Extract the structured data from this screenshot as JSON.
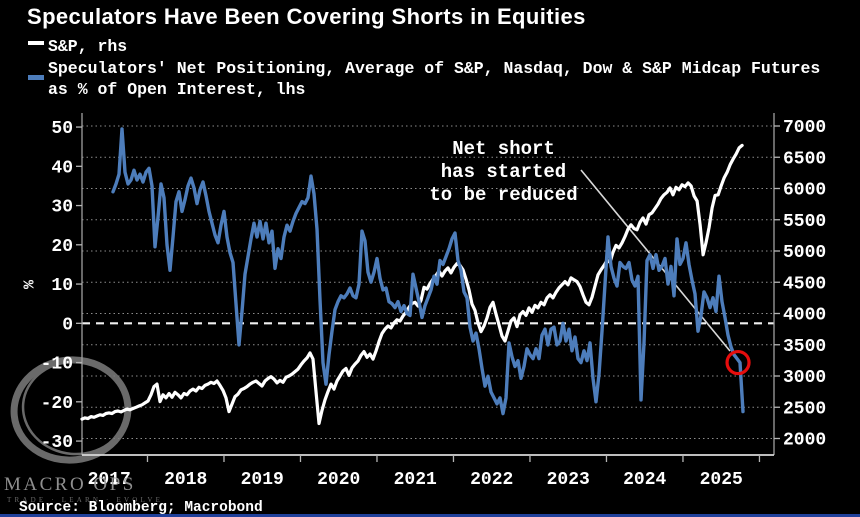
{
  "title": "Speculators Have Been Covering Shorts in Equities",
  "legend": {
    "items": [
      {
        "label": "S&P, rhs",
        "color": "#ffffff"
      },
      {
        "label": "Speculators' Net Positioning, Average of S&P, Nasdaq, Dow & S&P Midcap Futures",
        "label_line2": "as % of Open Interest, lhs",
        "color": "#4d7dbb"
      }
    ]
  },
  "annotation": {
    "lines": [
      "Net short",
      "has started",
      "to be reduced"
    ]
  },
  "watermark": {
    "brand": "MACRO OPS",
    "tagline": "TRADE · LEARN · EVOLVE"
  },
  "source": "Source: Bloomberg; Macrobond",
  "colors": {
    "background": "#000000",
    "sp_line": "#ffffff",
    "spec_line": "#4d7dbb",
    "highlight_circle": "#e60d0d",
    "gridline": "#8c8c8c",
    "bottom_bar": "#20409a"
  },
  "chart_data": {
    "type": "line",
    "title": "Speculators Have Been Covering Shorts in Equities",
    "ylabel_left": "%",
    "grid": "dotted horizontal at right-axis ticks",
    "legend_position": "top-left",
    "t_range": [
      2017.144,
      2026.19
    ],
    "x_axis": {
      "label_years": [
        "2017",
        "2018",
        "2019",
        "2020",
        "2021",
        "2022",
        "2023",
        "2024",
        "2025"
      ],
      "tick_years": [
        2018,
        2019,
        2020,
        2021,
        2022,
        2023,
        2024,
        2025,
        2026
      ]
    },
    "left_axis": {
      "label": "%",
      "ticks": [
        50,
        40,
        30,
        20,
        10,
        0,
        -10,
        -20,
        -30
      ],
      "range": [
        -33.55,
        53.07
      ],
      "zero_line": 0
    },
    "right_axis": {
      "ticks": [
        7000,
        6500,
        6000,
        5500,
        5000,
        4500,
        4000,
        3500,
        3000,
        2500,
        2000
      ],
      "range": [
        1736,
        7176
      ]
    },
    "series": [
      {
        "name": "S&P, rhs",
        "axis": "right",
        "color": "#ffffff",
        "t_start": 2017.144,
        "t_step": 0.03922,
        "values": [
          2310,
          2330,
          2320,
          2350,
          2340,
          2360,
          2380,
          2370,
          2400,
          2410,
          2400,
          2430,
          2440,
          2425,
          2450,
          2470,
          2460,
          2480,
          2500,
          2520,
          2540,
          2570,
          2600,
          2700,
          2830,
          2870,
          2590,
          2700,
          2650,
          2720,
          2660,
          2740,
          2700,
          2650,
          2720,
          2700,
          2760,
          2790,
          2760,
          2820,
          2800,
          2850,
          2870,
          2900,
          2880,
          2920,
          2850,
          2770,
          2650,
          2430,
          2550,
          2670,
          2710,
          2780,
          2800,
          2830,
          2870,
          2900,
          2920,
          2880,
          2840,
          2920,
          2960,
          2990,
          2950,
          2890,
          2930,
          2900,
          2980,
          3000,
          3030,
          3070,
          3110,
          3180,
          3240,
          3290,
          3370,
          3270,
          2750,
          2240,
          2450,
          2620,
          2750,
          2870,
          2790,
          2920,
          3000,
          3080,
          3120,
          3010,
          3130,
          3190,
          3240,
          3330,
          3390,
          3300,
          3350,
          3270,
          3400,
          3550,
          3680,
          3750,
          3800,
          3770,
          3850,
          3900,
          3880,
          3960,
          4020,
          4100,
          4160,
          4180,
          4120,
          4210,
          4420,
          4390,
          4480,
          4550,
          4610,
          4680,
          4600,
          4680,
          4730,
          4650,
          4740,
          4800,
          4770,
          4700,
          4550,
          4380,
          4150,
          4050,
          3850,
          3710,
          3800,
          3930,
          4100,
          4180,
          3990,
          3820,
          3640,
          3560,
          3720,
          3880,
          3930,
          3790,
          3980,
          4030,
          3970,
          4090,
          4020,
          4130,
          4090,
          4180,
          4140,
          4250,
          4300,
          4250,
          4340,
          4410,
          4460,
          4510,
          4460,
          4570,
          4540,
          4510,
          4430,
          4300,
          4180,
          4140,
          4260,
          4440,
          4620,
          4700,
          4770,
          4850,
          4820,
          4980,
          5090,
          5050,
          5130,
          5230,
          5350,
          5420,
          5360,
          5340,
          5460,
          5530,
          5430,
          5580,
          5610,
          5680,
          5750,
          5840,
          5900,
          5940,
          6010,
          5900,
          6020,
          5980,
          6060,
          6030,
          6090,
          6040,
          5880,
          5800,
          5420,
          4940,
          5140,
          5380,
          5690,
          5890,
          5900,
          6040,
          6170,
          6260,
          6380,
          6470,
          6550,
          6650,
          6690
        ]
      },
      {
        "name": "Speculators' Net Positioning, Average of S&P, Nasdaq, Dow & S&P Midcap Futures as % of Open Interest, lhs",
        "axis": "left",
        "color": "#4d7dbb",
        "t_start": 2017.549,
        "t_step": 0.03922,
        "values": [
          33.5,
          35.5,
          38,
          49.5,
          38.5,
          35.5,
          36.5,
          39,
          36.5,
          38,
          36,
          38.5,
          39.5,
          35,
          19.5,
          27,
          35.5,
          32,
          20,
          13.5,
          22,
          31,
          33.5,
          28.5,
          31.5,
          35,
          37,
          34.5,
          30.5,
          34,
          36,
          32.5,
          28.5,
          25.5,
          22.5,
          20.5,
          25,
          28.5,
          22,
          18,
          15.5,
          5,
          -5.5,
          3,
          12.5,
          17,
          21.5,
          25.5,
          22,
          26,
          21.5,
          25.5,
          20.5,
          23.5,
          14,
          19,
          16.5,
          22,
          25,
          23.5,
          26,
          28,
          29.5,
          31,
          30.5,
          32,
          37.5,
          33,
          24,
          6,
          -10,
          -15.5,
          -8,
          -2,
          3.5,
          5.5,
          7,
          6.5,
          7.5,
          9,
          7,
          6.5,
          10,
          23.5,
          21,
          13,
          10.5,
          13,
          16.5,
          11.5,
          8.5,
          9,
          5.5,
          5,
          4,
          5.5,
          3,
          4.5,
          2.5,
          2,
          12.5,
          9,
          5.5,
          1.5,
          4.5,
          6.5,
          8.5,
          12,
          10,
          16,
          15,
          17,
          19,
          21.5,
          23,
          16,
          13.5,
          8,
          6.5,
          -1,
          -4.5,
          -2.5,
          -6.5,
          -11.5,
          -16,
          -13.5,
          -17.5,
          -19,
          -20.5,
          -19,
          -23,
          -19,
          -5,
          -8.5,
          -11,
          -9.5,
          -14,
          -11,
          -6.5,
          -8,
          -9,
          -6.5,
          -9,
          -3,
          -1.5,
          -5.5,
          -1.5,
          -1,
          -5.5,
          -4.5,
          0,
          -4.5,
          -1.5,
          -7,
          -3.5,
          -9,
          -10,
          -7,
          -9.5,
          -5,
          -14,
          -20,
          -13,
          -2,
          10,
          22,
          14.5,
          11.5,
          9.5,
          15.5,
          14.5,
          14,
          15.5,
          11,
          9.5,
          12,
          -19.5,
          -5,
          16,
          17.5,
          14,
          17.5,
          13.5,
          14.5,
          16.5,
          10,
          14.5,
          7,
          21.5,
          15,
          16.5,
          20.5,
          15,
          11,
          7.5,
          -2,
          2,
          8,
          6.5,
          4,
          6.5,
          3,
          12,
          5.5,
          1.5,
          -3,
          -6,
          -8,
          -9,
          -10,
          -22.5
        ]
      }
    ],
    "highlight_circle": {
      "t": 2025.72,
      "value": -10,
      "axis": "left",
      "radius": 11
    }
  }
}
